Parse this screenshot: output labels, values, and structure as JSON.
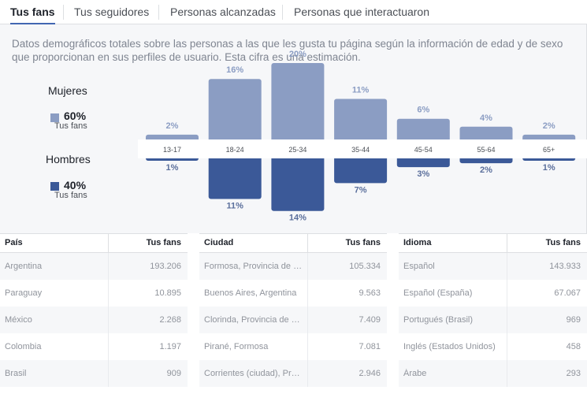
{
  "tabs": [
    {
      "label": "Tus fans",
      "active": true
    },
    {
      "label": "Tus seguidores",
      "active": false
    },
    {
      "label": "Personas alcanzadas",
      "active": false
    },
    {
      "label": "Personas que interactuaron",
      "active": false
    }
  ],
  "description": "Datos demográficos totales sobre las personas a las que les gusta tu página según la información de edad y de sexo que proporcionan en sus perfiles de usuario. Esta cifra es una estimación.",
  "legend": {
    "women": {
      "title": "Mujeres",
      "pct": "60%",
      "sub": "Tus fans"
    },
    "men": {
      "title": "Hombres",
      "pct": "40%",
      "sub": "Tus fans"
    }
  },
  "colors": {
    "women": "#8b9dc3",
    "men": "#3b5998",
    "accent": "#4267b2"
  },
  "chart_data": {
    "type": "bar",
    "categories": [
      "13-17",
      "18-24",
      "25-34",
      "35-44",
      "45-54",
      "55-64",
      "65+"
    ],
    "series": [
      {
        "name": "Mujeres",
        "values": [
          2,
          16,
          20,
          11,
          6,
          4,
          2
        ],
        "labels": [
          "2%",
          "16%",
          "20%",
          "11%",
          "6%",
          "4%",
          "2%"
        ]
      },
      {
        "name": "Hombres",
        "values": [
          1,
          11,
          14,
          7,
          3,
          2,
          1
        ],
        "labels": [
          "1%",
          "11%",
          "14%",
          "7%",
          "3%",
          "2%",
          "1%"
        ]
      }
    ],
    "ylim": [
      0,
      20
    ]
  },
  "tables": {
    "country": {
      "headers": [
        "País",
        "Tus fans"
      ],
      "rows": [
        [
          "Argentina",
          "193.206"
        ],
        [
          "Paraguay",
          "10.895"
        ],
        [
          "México",
          "2.268"
        ],
        [
          "Colombia",
          "1.197"
        ],
        [
          "Brasil",
          "909"
        ]
      ]
    },
    "city": {
      "headers": [
        "Ciudad",
        "Tus fans"
      ],
      "rows": [
        [
          "Formosa, Provincia de …",
          "105.334"
        ],
        [
          "Buenos Aires, Argentina",
          "9.563"
        ],
        [
          "Clorinda, Provincia de …",
          "7.409"
        ],
        [
          "Pirané, Formosa",
          "7.081"
        ],
        [
          "Corrientes (ciudad), Pr…",
          "2.946"
        ]
      ]
    },
    "language": {
      "headers": [
        "Idioma",
        "Tus fans"
      ],
      "rows": [
        [
          "Español",
          "143.933"
        ],
        [
          "Español (España)",
          "67.067"
        ],
        [
          "Portugués (Brasil)",
          "969"
        ],
        [
          "Inglés (Estados Unidos)",
          "458"
        ],
        [
          "Árabe",
          "293"
        ]
      ]
    }
  }
}
